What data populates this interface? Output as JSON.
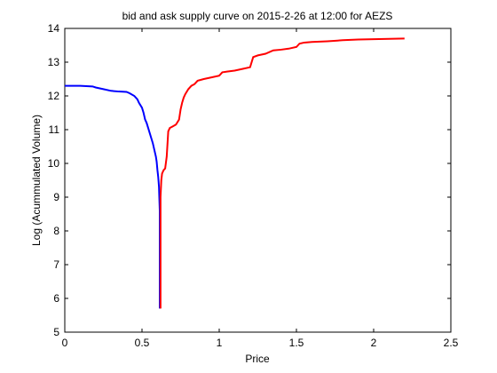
{
  "chart_data": {
    "type": "line",
    "title": "bid and ask supply curve on 2015-2-26 at 12:00 for AEZS",
    "xlabel": "Price",
    "ylabel": "Log (Acummulated Volume)",
    "xlim": [
      0,
      2.5
    ],
    "ylim": [
      5,
      14
    ],
    "xticks": [
      "0",
      "0.5",
      "1",
      "1.5",
      "2",
      "2.5"
    ],
    "yticks": [
      "5",
      "6",
      "7",
      "8",
      "9",
      "10",
      "11",
      "12",
      "13",
      "14"
    ],
    "grid": false,
    "legend": "none",
    "series": [
      {
        "color": "#0000ff",
        "x": [
          0,
          0.05,
          0.1,
          0.18,
          0.2,
          0.25,
          0.3,
          0.35,
          0.4,
          0.42,
          0.45,
          0.47,
          0.48,
          0.5,
          0.51,
          0.52,
          0.53,
          0.54,
          0.55,
          0.56,
          0.57,
          0.58,
          0.59,
          0.595,
          0.6,
          0.605,
          0.61,
          0.612,
          0.615,
          0.615,
          0.615,
          0.615
        ],
        "y": [
          12.3,
          12.3,
          12.3,
          12.28,
          12.25,
          12.2,
          12.15,
          12.13,
          12.12,
          12.08,
          12.0,
          11.9,
          11.8,
          11.65,
          11.5,
          11.3,
          11.2,
          11.05,
          10.9,
          10.75,
          10.6,
          10.4,
          10.2,
          10.05,
          9.8,
          9.6,
          9.3,
          9.0,
          8.6,
          7.5,
          6.5,
          5.7
        ]
      },
      {
        "color": "#ff0000",
        "x": [
          0.62,
          0.62,
          0.62,
          0.62,
          0.625,
          0.63,
          0.64,
          0.65,
          0.66,
          0.67,
          0.68,
          0.7,
          0.72,
          0.74,
          0.75,
          0.76,
          0.77,
          0.78,
          0.8,
          0.82,
          0.84,
          0.86,
          0.9,
          0.95,
          1.0,
          1.02,
          1.05,
          1.1,
          1.15,
          1.2,
          1.22,
          1.25,
          1.3,
          1.35,
          1.4,
          1.45,
          1.5,
          1.52,
          1.55,
          1.6,
          1.7,
          1.8,
          1.9,
          2.0,
          2.1,
          2.2
        ],
        "y": [
          5.7,
          6.5,
          8.0,
          9.0,
          9.5,
          9.7,
          9.8,
          9.85,
          10.2,
          10.95,
          11.05,
          11.1,
          11.15,
          11.3,
          11.6,
          11.8,
          11.95,
          12.05,
          12.2,
          12.3,
          12.35,
          12.45,
          12.5,
          12.55,
          12.6,
          12.7,
          12.72,
          12.75,
          12.8,
          12.85,
          13.15,
          13.2,
          13.25,
          13.35,
          13.37,
          13.4,
          13.45,
          13.55,
          13.58,
          13.6,
          13.62,
          13.65,
          13.67,
          13.68,
          13.69,
          13.7
        ]
      }
    ]
  }
}
